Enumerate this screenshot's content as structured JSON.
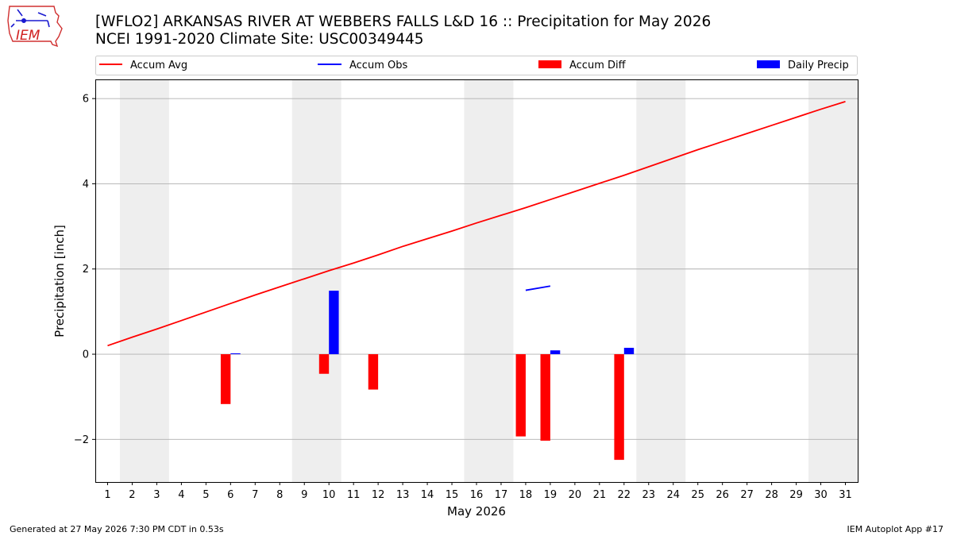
{
  "header": {
    "title": "[WFLO2] ARKANSAS RIVER  AT WEBBERS FALLS L&D 16 :: Precipitation for May 2026",
    "subtitle": "NCEI 1991-2020 Climate Site: USC00349445",
    "logo_text": "IEM"
  },
  "footer": {
    "generated": "Generated at 27 May 2026 7:30 PM CDT in 0.53s",
    "app": "IEM Autoplot App #17"
  },
  "colors": {
    "avg": "#ff0000",
    "obs": "#0000ff",
    "diff": "#ff0000",
    "daily": "#0000ff",
    "weekend": "#eeeeee",
    "grid": "#b0b0b0"
  },
  "chart_data": {
    "type": "bar",
    "xlabel": "May 2026",
    "ylabel": "Precipitation [inch]",
    "xlim": [
      0.5,
      31.5
    ],
    "ylim": [
      -3.0,
      6.45
    ],
    "yticks": [
      -2,
      0,
      2,
      4,
      6
    ],
    "ytick_labels": [
      "−2",
      "0",
      "2",
      "4",
      "6"
    ],
    "days": [
      1,
      2,
      3,
      4,
      5,
      6,
      7,
      8,
      9,
      10,
      11,
      12,
      13,
      14,
      15,
      16,
      17,
      18,
      19,
      20,
      21,
      22,
      23,
      24,
      25,
      26,
      27,
      28,
      29,
      30,
      31
    ],
    "weekend_spans": [
      [
        1.5,
        3.5
      ],
      [
        8.5,
        10.5
      ],
      [
        15.5,
        17.5
      ],
      [
        22.5,
        24.5
      ],
      [
        29.5,
        31.5
      ]
    ],
    "grid": true,
    "legend": {
      "placement": "top",
      "entries": [
        "Accum Avg",
        "Accum Obs",
        "Accum Diff",
        "Daily Precip"
      ]
    },
    "series": [
      {
        "name": "Accum Avg",
        "type": "line",
        "x": [
          1,
          2,
          3,
          4,
          5,
          6,
          7,
          8,
          9,
          10,
          11,
          12,
          13,
          14,
          15,
          16,
          17,
          18,
          19,
          20,
          21,
          22,
          23,
          24,
          25,
          26,
          27,
          28,
          29,
          30,
          31
        ],
        "values": [
          0.2,
          0.4,
          0.59,
          0.79,
          0.99,
          1.19,
          1.39,
          1.58,
          1.77,
          1.96,
          2.14,
          2.33,
          2.53,
          2.71,
          2.89,
          3.08,
          3.26,
          3.44,
          3.63,
          3.82,
          4.01,
          4.2,
          4.4,
          4.6,
          4.8,
          4.99,
          5.18,
          5.37,
          5.56,
          5.75,
          5.93
        ]
      },
      {
        "name": "Accum Obs",
        "type": "line",
        "x": [
          18,
          19
        ],
        "values": [
          1.5,
          1.6
        ]
      },
      {
        "name": "Accum Diff",
        "type": "bar",
        "x": [
          6,
          10,
          12,
          18,
          19,
          22
        ],
        "values": [
          -1.17,
          -0.46,
          -0.83,
          -1.93,
          -2.03,
          -2.48
        ]
      },
      {
        "name": "Daily Precip",
        "type": "bar",
        "x": [
          6,
          10,
          19,
          22
        ],
        "values": [
          0.02,
          1.49,
          0.09,
          0.15
        ]
      }
    ]
  }
}
